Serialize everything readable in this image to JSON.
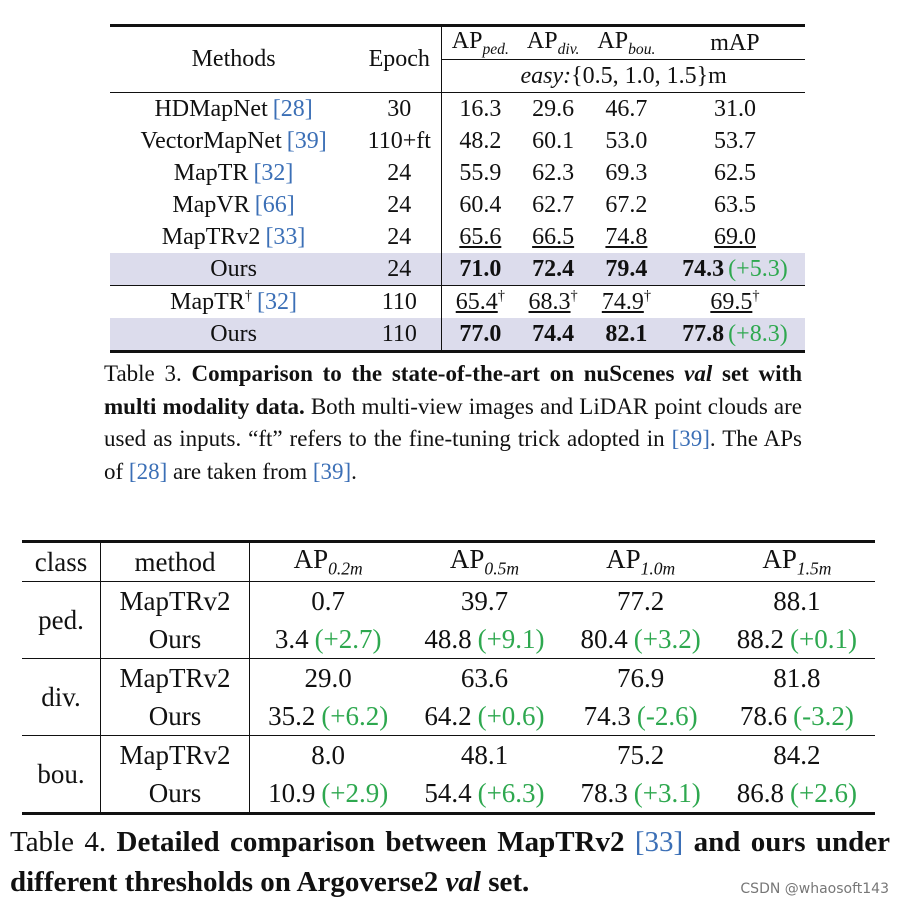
{
  "table3": {
    "header": {
      "methods": "Methods",
      "epoch": "Epoch",
      "metrics": [
        {
          "base": "AP",
          "sub": "ped."
        },
        {
          "base": "AP",
          "sub": "div."
        },
        {
          "base": "AP",
          "sub": "bou."
        },
        {
          "base": "mAP"
        }
      ],
      "setting": {
        "label": "easy:",
        "range": "{0.5, 1.0, 1.5}m"
      }
    },
    "rows": [
      {
        "method": "HDMapNet",
        "ref": "[28]",
        "epoch": "30",
        "values": [
          "16.3",
          "29.6",
          "46.7",
          "31.0"
        ]
      },
      {
        "method": "VectorMapNet",
        "ref": "[39]",
        "epoch": "110+ft",
        "values": [
          "48.2",
          "60.1",
          "53.0",
          "53.7"
        ]
      },
      {
        "method": "MapTR",
        "ref": "[32]",
        "epoch": "24",
        "values": [
          "55.9",
          "62.3",
          "69.3",
          "62.5"
        ]
      },
      {
        "method": "MapVR",
        "ref": "[66]",
        "epoch": "24",
        "values": [
          "60.4",
          "62.7",
          "67.2",
          "63.5"
        ]
      },
      {
        "method": "MapTRv2",
        "ref": "[33]",
        "epoch": "24",
        "values": [
          "65.6",
          "66.5",
          "74.8",
          "69.0"
        ],
        "style": "underline"
      },
      {
        "method": "Ours",
        "epoch": "24",
        "values": [
          "71.0",
          "72.4",
          "79.4",
          "74.3"
        ],
        "delta": "(+5.3)",
        "style": "bold",
        "highlight": true
      },
      {
        "method": "MapTR",
        "mark": "†",
        "ref": "[32]",
        "epoch": "110",
        "values": [
          "65.4",
          "68.3",
          "74.9",
          "69.5"
        ],
        "value_mark": "†",
        "style": "underline",
        "separator_before": true
      },
      {
        "method": "Ours",
        "epoch": "110",
        "values": [
          "77.0",
          "74.4",
          "82.1",
          "77.8"
        ],
        "delta": "(+8.3)",
        "style": "bold",
        "highlight": true
      }
    ],
    "caption": [
      {
        "text": "Table 3. ",
        "style": "normal"
      },
      {
        "text": "Comparison to the state-of-the-art on nuScenes ",
        "style": "bold"
      },
      {
        "text": "val",
        "style": "bold-italic"
      },
      {
        "text": " set with multi modality data.",
        "style": "bold"
      },
      {
        "text": " Both multi-view images and LiDAR point clouds are used as inputs. “ft” refers to the fine-tuning trick adopted in ",
        "style": "normal"
      },
      {
        "text": "[39]",
        "style": "ref"
      },
      {
        "text": ". The APs of ",
        "style": "normal"
      },
      {
        "text": "[28]",
        "style": "ref"
      },
      {
        "text": " are taken from ",
        "style": "normal"
      },
      {
        "text": "[39]",
        "style": "ref"
      },
      {
        "text": ".",
        "style": "normal"
      }
    ]
  },
  "table4": {
    "header": {
      "class": "class",
      "method": "method",
      "metrics": [
        {
          "base": "AP",
          "sub": "0.2m"
        },
        {
          "base": "AP",
          "sub": "0.5m"
        },
        {
          "base": "AP",
          "sub": "1.0m"
        },
        {
          "base": "AP",
          "sub": "1.5m"
        }
      ]
    },
    "groups": [
      {
        "class": "ped.",
        "rows": [
          {
            "method": "MapTRv2",
            "values": [
              "0.7",
              "39.7",
              "77.2",
              "88.1"
            ]
          },
          {
            "method": "Ours",
            "values": [
              "3.4",
              "48.8",
              "80.4",
              "88.2"
            ],
            "deltas": [
              "(+2.7)",
              "(+9.1)",
              "(+3.2)",
              "(+0.1)"
            ]
          }
        ]
      },
      {
        "class": "div.",
        "rows": [
          {
            "method": "MapTRv2",
            "values": [
              "29.0",
              "63.6",
              "76.9",
              "81.8"
            ]
          },
          {
            "method": "Ours",
            "values": [
              "35.2",
              "64.2",
              "74.3",
              "78.6"
            ],
            "deltas": [
              "(+6.2)",
              "(+0.6)",
              "(-2.6)",
              "(-3.2)"
            ]
          }
        ]
      },
      {
        "class": "bou.",
        "rows": [
          {
            "method": "MapTRv2",
            "values": [
              "8.0",
              "48.1",
              "75.2",
              "84.2"
            ]
          },
          {
            "method": "Ours",
            "values": [
              "10.9",
              "54.4",
              "78.3",
              "86.8"
            ],
            "deltas": [
              "(+2.9)",
              "(+6.3)",
              "(+3.1)",
              "(+2.6)"
            ]
          }
        ]
      }
    ],
    "caption": [
      {
        "text": "Table 4. ",
        "style": "normal"
      },
      {
        "text": "Detailed comparison between MapTRv2 ",
        "style": "bold"
      },
      {
        "text": "[33]",
        "style": "ref"
      },
      {
        "text": " and ours under different thresholds on Argoverse2 ",
        "style": "bold"
      },
      {
        "text": "val",
        "style": "bold-italic"
      },
      {
        "text": " set.",
        "style": "bold"
      }
    ]
  },
  "watermark": "CSDN @whaosoft143"
}
